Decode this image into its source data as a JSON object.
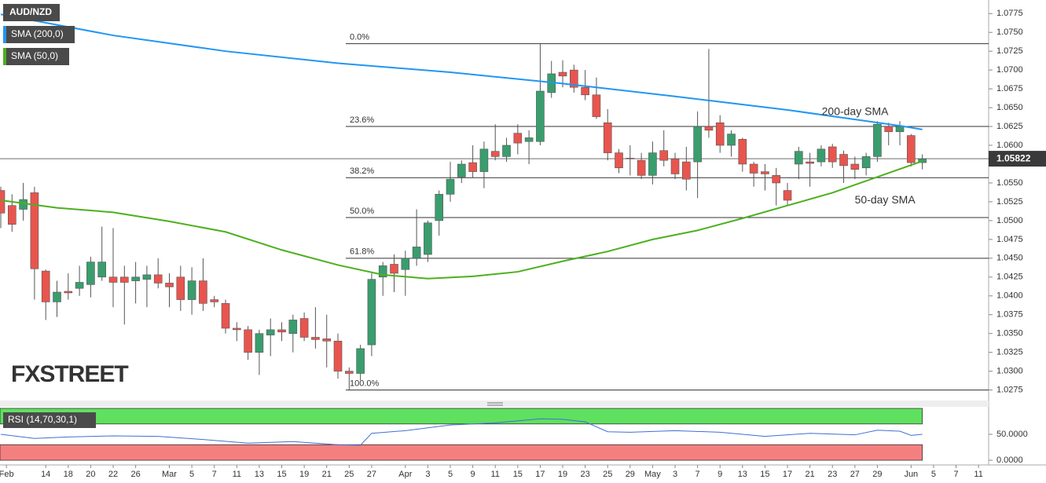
{
  "chart_data": [
    {
      "type": "candlestick",
      "title": "AUD/NZD",
      "xlim": [
        -0.07,
        87.9
      ],
      "xticks": [
        {
          "value": 0.5,
          "label": "Feb"
        },
        {
          "value": 4,
          "label": "14"
        },
        {
          "value": 6,
          "label": "18"
        },
        {
          "value": 8,
          "label": "20"
        },
        {
          "value": 10,
          "label": "22"
        },
        {
          "value": 12,
          "label": "26"
        },
        {
          "value": 15,
          "label": "Mar"
        },
        {
          "value": 17,
          "label": "5"
        },
        {
          "value": 19,
          "label": "7"
        },
        {
          "value": 21,
          "label": "11"
        },
        {
          "value": 23,
          "label": "13"
        },
        {
          "value": 25,
          "label": "15"
        },
        {
          "value": 27,
          "label": "19"
        },
        {
          "value": 29,
          "label": "21"
        },
        {
          "value": 31,
          "label": "25"
        },
        {
          "value": 33,
          "label": "27"
        },
        {
          "value": 36,
          "label": "Apr"
        },
        {
          "value": 38,
          "label": "3"
        },
        {
          "value": 40,
          "label": "5"
        },
        {
          "value": 42,
          "label": "9"
        },
        {
          "value": 44,
          "label": "11"
        },
        {
          "value": 46,
          "label": "15"
        },
        {
          "value": 48,
          "label": "17"
        },
        {
          "value": 50,
          "label": "19"
        },
        {
          "value": 52,
          "label": "23"
        },
        {
          "value": 54,
          "label": "25"
        },
        {
          "value": 56,
          "label": "29"
        },
        {
          "value": 58,
          "label": "May"
        },
        {
          "value": 60,
          "label": "3"
        },
        {
          "value": 62,
          "label": "7"
        },
        {
          "value": 64,
          "label": "9"
        },
        {
          "value": 66,
          "label": "13"
        },
        {
          "value": 68,
          "label": "15"
        },
        {
          "value": 70,
          "label": "17"
        },
        {
          "value": 72,
          "label": "21"
        },
        {
          "value": 74,
          "label": "23"
        },
        {
          "value": 76,
          "label": "27"
        },
        {
          "value": 78,
          "label": "29"
        },
        {
          "value": 81,
          "label": "Jun"
        },
        {
          "value": 83,
          "label": "5"
        },
        {
          "value": 85,
          "label": "7"
        },
        {
          "value": 87,
          "label": "11"
        }
      ],
      "ylim": [
        1.0261,
        1.0793
      ],
      "yticks": [
        1.0775,
        {
          "value": 1.075,
          "label": "1.0750"
        },
        1.0725,
        {
          "value": 1.07,
          "label": "1.0700"
        },
        1.0675,
        {
          "value": 1.065,
          "label": "1.0650"
        },
        1.0625,
        {
          "value": 1.06,
          "label": "1.0600"
        },
        1.0575,
        {
          "value": 1.055,
          "label": "1.0550"
        },
        1.0525,
        {
          "value": 1.05,
          "label": "1.0500"
        },
        1.0475,
        {
          "value": 1.045,
          "label": "1.0450"
        },
        1.0425,
        {
          "value": 1.04,
          "label": "1.0400"
        },
        1.0375,
        {
          "value": 1.035,
          "label": "1.0350"
        },
        1.0325,
        {
          "value": 1.03,
          "label": "1.0300"
        },
        1.0275
      ],
      "up_color": "#3a9d6e",
      "down_color": "#e8554e",
      "open": [
        1.054,
        1.052,
        1.0515,
        1.0537,
        1.0433,
        1.0392,
        1.0406,
        1.041,
        1.0415,
        1.0425,
        1.0425,
        1.0425,
        1.042,
        1.0422,
        1.0428,
        1.0417,
        1.0425,
        1.0395,
        1.042,
        1.0395,
        1.039,
        1.0357,
        1.0355,
        1.0325,
        1.0348,
        1.0355,
        1.035,
        1.037,
        1.0345,
        1.0343,
        1.034,
        1.03,
        1.0297,
        1.0335,
        1.0425,
        1.0442,
        1.0435,
        1.045,
        1.0455,
        1.05,
        1.0535,
        1.0558,
        1.0577,
        1.0565,
        1.0592,
        1.0585,
        1.0616,
        1.0605,
        1.0605,
        1.067,
        1.0697,
        1.07,
        1.0677,
        1.0667,
        1.063,
        1.059,
        1.0583,
        1.058,
        1.056,
        1.0593,
        1.0582,
        1.0578,
        1.0578,
        1.0625,
        1.063,
        1.06,
        1.0608,
        1.0575,
        1.0565,
        1.056,
        1.054,
        1.0575,
        1.0578,
        1.0578,
        1.0598,
        1.0588,
        1.0575,
        1.057,
        1.0585,
        1.0625,
        1.0618,
        1.0613,
        1.0577
      ],
      "high": [
        1.0545,
        1.0535,
        1.055,
        1.0545,
        1.0435,
        1.042,
        1.043,
        1.044,
        1.0452,
        1.0492,
        1.049,
        1.044,
        1.0445,
        1.044,
        1.045,
        1.043,
        1.044,
        1.0438,
        1.045,
        1.04,
        1.0395,
        1.0365,
        1.036,
        1.0355,
        1.037,
        1.0365,
        1.0375,
        1.0378,
        1.0385,
        1.0375,
        1.035,
        1.0305,
        1.0335,
        1.043,
        1.0445,
        1.0455,
        1.046,
        1.0515,
        1.05,
        1.054,
        1.0578,
        1.058,
        1.06,
        1.0605,
        1.0628,
        1.061,
        1.0628,
        1.062,
        1.0735,
        1.0712,
        1.0713,
        1.0707,
        1.07,
        1.069,
        1.0648,
        1.0595,
        1.06,
        1.059,
        1.0605,
        1.062,
        1.059,
        1.0598,
        1.0645,
        1.0728,
        1.064,
        1.062,
        1.061,
        1.0578,
        1.0575,
        1.057,
        1.055,
        1.0598,
        1.059,
        1.06,
        1.0602,
        1.0593,
        1.0585,
        1.059,
        1.0632,
        1.063,
        1.0632,
        1.0615,
        1.0588
      ],
      "low": [
        1.049,
        1.0485,
        1.05,
        1.0395,
        1.0368,
        1.0372,
        1.0395,
        1.04,
        1.0398,
        1.042,
        1.0385,
        1.0362,
        1.039,
        1.0385,
        1.041,
        1.0385,
        1.038,
        1.0375,
        1.038,
        1.0385,
        1.035,
        1.034,
        1.0315,
        1.0295,
        1.032,
        1.034,
        1.0325,
        1.034,
        1.033,
        1.0305,
        1.029,
        1.0275,
        1.0288,
        1.032,
        1.04,
        1.0405,
        1.04,
        1.044,
        1.0445,
        1.048,
        1.0525,
        1.055,
        1.0557,
        1.0543,
        1.058,
        1.0578,
        1.0588,
        1.0575,
        1.06,
        1.0663,
        1.0677,
        1.067,
        1.066,
        1.0635,
        1.058,
        1.0563,
        1.056,
        1.0555,
        1.0548,
        1.0572,
        1.0555,
        1.054,
        1.053,
        1.061,
        1.059,
        1.0585,
        1.0565,
        1.0545,
        1.054,
        1.052,
        1.052,
        1.0555,
        1.0545,
        1.0572,
        1.057,
        1.055,
        1.0555,
        1.056,
        1.0578,
        1.06,
        1.06,
        1.0572,
        1.0568
      ],
      "close": [
        1.051,
        1.0495,
        1.0528,
        1.0436,
        1.0392,
        1.0405,
        1.0404,
        1.0418,
        1.0445,
        1.0445,
        1.0418,
        1.0418,
        1.0425,
        1.0428,
        1.0417,
        1.0412,
        1.0395,
        1.042,
        1.039,
        1.0392,
        1.0357,
        1.0355,
        1.0325,
        1.035,
        1.0355,
        1.0352,
        1.0368,
        1.0345,
        1.0342,
        1.034,
        1.03,
        1.0297,
        1.033,
        1.0422,
        1.044,
        1.043,
        1.045,
        1.0465,
        1.0497,
        1.0535,
        1.0555,
        1.0575,
        1.0565,
        1.0595,
        1.0585,
        1.06,
        1.0603,
        1.061,
        1.0672,
        1.0695,
        1.0692,
        1.0677,
        1.0667,
        1.0638,
        1.059,
        1.057,
        1.0582,
        1.056,
        1.059,
        1.058,
        1.0562,
        1.0555,
        1.0625,
        1.062,
        1.06,
        1.0615,
        1.0575,
        1.0563,
        1.0562,
        1.055,
        1.0527,
        1.0592,
        1.0576,
        1.0595,
        1.0578,
        1.0573,
        1.0568,
        1.0585,
        1.0628,
        1.0618,
        1.0625,
        1.0577,
        1.0582
      ],
      "series": [
        {
          "name": "SMA (200,0)",
          "label": "200-day SMA",
          "color": "#2196f3",
          "x": [
            0,
            10,
            20,
            30,
            40,
            50,
            60,
            70,
            80,
            82
          ],
          "values": [
            1.0774,
            1.0746,
            1.0725,
            1.0709,
            1.0697,
            1.0682,
            1.0665,
            1.0647,
            1.0626,
            1.0621
          ]
        },
        {
          "name": "SMA (50,0)",
          "label": "50-day SMA",
          "color": "#4cb01e",
          "x": [
            0,
            5,
            10,
            15,
            20,
            25,
            30,
            34,
            38,
            42,
            46,
            50,
            54,
            58,
            62,
            66,
            70,
            74,
            78,
            82
          ],
          "values": [
            1.0527,
            1.0517,
            1.0511,
            1.0499,
            1.0485,
            1.0461,
            1.0441,
            1.0428,
            1.0423,
            1.0426,
            1.0432,
            1.0446,
            1.0459,
            1.0475,
            1.0487,
            1.0503,
            1.052,
            1.0537,
            1.0558,
            1.0579
          ]
        }
      ],
      "levels": [
        {
          "label": "0.0%",
          "value": 1.0735
        },
        {
          "label": "23.6%",
          "value": 1.0625
        },
        {
          "label": "38.2%",
          "value": 1.0557
        },
        {
          "label": "50.0%",
          "value": 1.0504
        },
        {
          "label": "61.8%",
          "value": 1.045
        },
        {
          "label": "100.0%",
          "value": 1.0275
        }
      ],
      "last_price": 1.05822,
      "watermark": "FXSTREET"
    },
    {
      "type": "line",
      "title": "RSI (14,70,30,1)",
      "color": "#3f6fd6",
      "xlim": [
        -0.07,
        87.9
      ],
      "ylim": [
        -9,
        103
      ],
      "yticks": [
        {
          "value": 50,
          "label": "50.0000"
        },
        {
          "value": 0,
          "label": "0.0000"
        }
      ],
      "zones": [
        {
          "from": 70,
          "to": 100,
          "color": "#5fe05f"
        },
        {
          "from": 0,
          "to": 30,
          "color": "#f47f7f"
        }
      ],
      "x": [
        0,
        3,
        6,
        10,
        14,
        18,
        22,
        26,
        30,
        32,
        33,
        36,
        40,
        44,
        48,
        50,
        52,
        54,
        56,
        60,
        64,
        68,
        72,
        76,
        78,
        80,
        81,
        82
      ],
      "values": [
        50,
        42,
        45,
        47,
        46,
        40,
        33,
        36,
        30,
        29,
        52,
        57,
        68,
        72,
        80,
        79,
        74,
        55,
        54,
        57,
        54,
        46,
        52,
        49,
        58,
        56,
        48,
        50
      ]
    }
  ]
}
